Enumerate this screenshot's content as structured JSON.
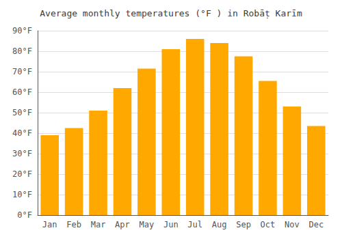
{
  "chart_data": {
    "type": "bar",
    "title": "Average monthly temperatures (°F ) in Robāṭ Karīm",
    "categories": [
      "Jan",
      "Feb",
      "Mar",
      "Apr",
      "May",
      "Jun",
      "Jul",
      "Aug",
      "Sep",
      "Oct",
      "Nov",
      "Dec"
    ],
    "values": [
      39,
      42.5,
      51,
      62,
      71.5,
      81,
      86,
      84,
      77.5,
      65.5,
      53,
      43.5
    ],
    "color": "#FFA800",
    "ylim": [
      0,
      90
    ],
    "yticks": [
      {
        "value": 0,
        "label": "0°F"
      },
      {
        "value": 10,
        "label": "10°F"
      },
      {
        "value": 20,
        "label": "20°F"
      },
      {
        "value": 30,
        "label": "30°F"
      },
      {
        "value": 40,
        "label": "40°F"
      },
      {
        "value": 50,
        "label": "50°F"
      },
      {
        "value": 60,
        "label": "60°F"
      },
      {
        "value": 70,
        "label": "70°F"
      },
      {
        "value": 80,
        "label": "80°F"
      },
      {
        "value": 90,
        "label": "90°F"
      }
    ],
    "grid": true
  }
}
